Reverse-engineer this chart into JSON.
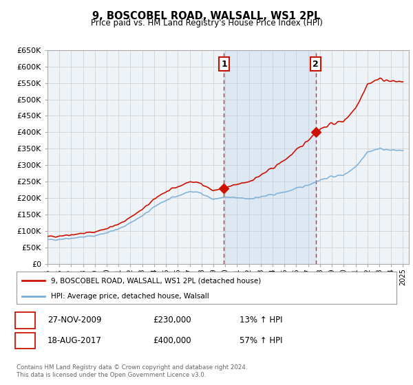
{
  "title": "9, BOSCOBEL ROAD, WALSALL, WS1 2PL",
  "subtitle": "Price paid vs. HM Land Registry's House Price Index (HPI)",
  "hpi_color": "#7aadd4",
  "price_color": "#cc1100",
  "grid_color": "#cccccc",
  "bg_color": "#ffffff",
  "plot_bg": "#eef3f8",
  "ylim": [
    0,
    650000
  ],
  "yticks": [
    0,
    50000,
    100000,
    150000,
    200000,
    250000,
    300000,
    350000,
    400000,
    450000,
    500000,
    550000,
    600000,
    650000
  ],
  "ytick_labels": [
    "£0",
    "£50K",
    "£100K",
    "£150K",
    "£200K",
    "£250K",
    "£300K",
    "£350K",
    "£400K",
    "£450K",
    "£500K",
    "£550K",
    "£600K",
    "£650K"
  ],
  "xlim_start": 1995.0,
  "xlim_end": 2025.5,
  "marker1_x": 2009.9,
  "marker1_y": 230000,
  "marker1_label": "1",
  "marker1_date": "27-NOV-2009",
  "marker1_price": "£230,000",
  "marker1_hpi": "13% ↑ HPI",
  "marker2_x": 2017.63,
  "marker2_y": 400000,
  "marker2_label": "2",
  "marker2_date": "18-AUG-2017",
  "marker2_price": "£400,000",
  "marker2_hpi": "57% ↑ HPI",
  "legend_label_price": "9, BOSCOBEL ROAD, WALSALL, WS1 2PL (detached house)",
  "legend_label_hpi": "HPI: Average price, detached house, Walsall",
  "footer1": "Contains HM Land Registry data © Crown copyright and database right 2024.",
  "footer2": "This data is licensed under the Open Government Licence v3.0."
}
